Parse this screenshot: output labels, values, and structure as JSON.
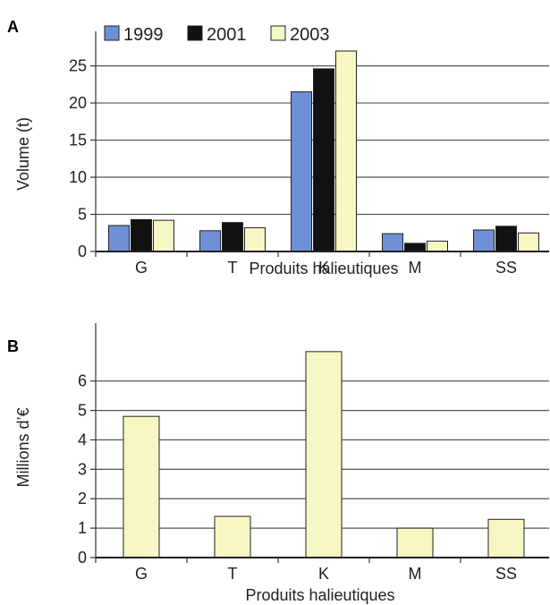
{
  "chart_data": [
    {
      "panel": "A",
      "type": "bar",
      "categories": [
        "G",
        "T",
        "K",
        "M",
        "SS"
      ],
      "series": [
        {
          "name": "1999",
          "color": "#6f8fd6",
          "values": [
            3.5,
            2.8,
            21.5,
            2.4,
            2.9
          ]
        },
        {
          "name": "2001",
          "color": "#111111",
          "values": [
            4.3,
            3.9,
            24.6,
            1.1,
            3.4
          ]
        },
        {
          "name": "2003",
          "color": "#f7f7c4",
          "values": [
            4.2,
            3.2,
            27.0,
            1.4,
            2.5
          ]
        }
      ],
      "xlabel": "Produits halieutiques",
      "ylabel": "Volume (t)",
      "ylim": [
        0,
        27
      ],
      "yticks": [
        0,
        5,
        10,
        15,
        20,
        25
      ],
      "grid": true,
      "legend": "top"
    },
    {
      "panel": "B",
      "type": "bar",
      "categories": [
        "G",
        "T",
        "K",
        "M",
        "SS"
      ],
      "series": [
        {
          "color": "#f7f7c4",
          "values": [
            4.8,
            1.4,
            7.0,
            1.0,
            1.3
          ]
        }
      ],
      "xlabel": "Produits halieutiques",
      "ylabel": "Millions d’€",
      "ylim": [
        0,
        7.3
      ],
      "yticks": [
        0,
        1,
        2,
        3,
        4,
        5,
        6
      ],
      "grid": true,
      "legend": "none"
    }
  ]
}
